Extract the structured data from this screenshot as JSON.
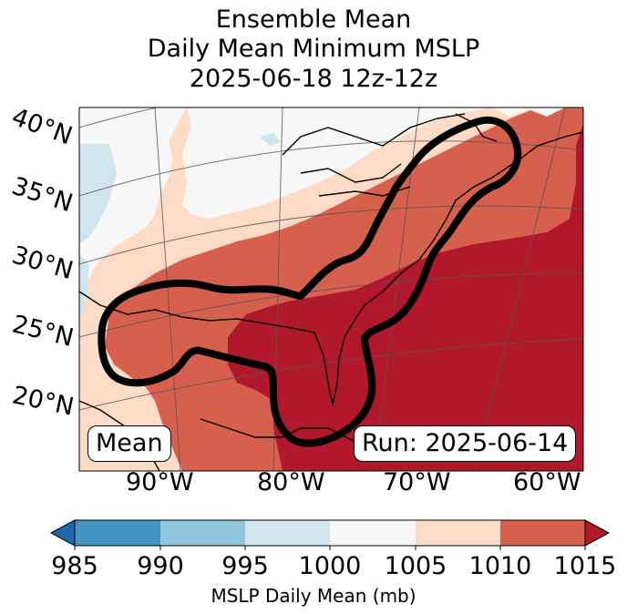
{
  "title": {
    "line1": "Ensemble Mean",
    "line2": "Daily Mean Minimum MSLP",
    "line3": "2025-06-18 12z-12z"
  },
  "map": {
    "lat_labels": [
      "40°N",
      "35°N",
      "30°N",
      "25°N",
      "20°N"
    ],
    "lon_labels": [
      "90°W",
      "80°W",
      "70°W",
      "60°W"
    ],
    "mean_tag": "Mean",
    "run_tag": "Run: 2025-06-14",
    "contour_desc": "ensemble low-pressure track contour"
  },
  "colorbar": {
    "ticks": [
      "985",
      "990",
      "995",
      "1000",
      "1005",
      "1010",
      "1015"
    ],
    "title": "MSLP Daily Mean (mb)",
    "colors": [
      "#2166ac",
      "#4393c3",
      "#92c5de",
      "#d1e5f0",
      "#f7f7f7",
      "#fddbc7",
      "#d6604d",
      "#b2182b"
    ]
  },
  "colors": {
    "very_light_blue": "#d1e5f0",
    "near_white": "#f7f7f7",
    "light_salmon": "#fddbc7",
    "salmon_red": "#d6604d",
    "dark_red": "#b2182b"
  }
}
